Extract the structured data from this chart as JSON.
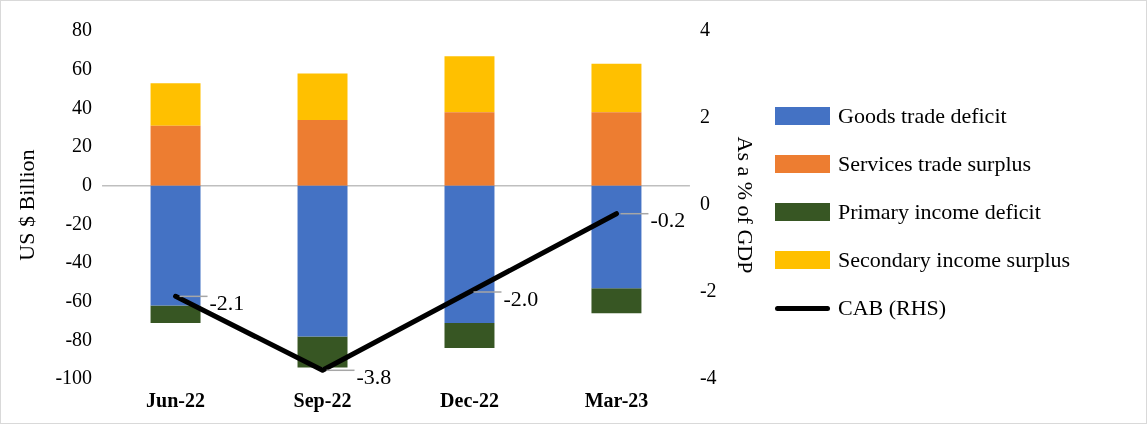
{
  "chart_data": {
    "type": "bar",
    "stacked": true,
    "categories": [
      "Jun-22",
      "Sep-22",
      "Dec-22",
      "Mar-23"
    ],
    "ylabel": "US $ Billion",
    "y2label": "As a % of GDP",
    "ylim": [
      -100,
      80
    ],
    "yticks": [
      -100,
      -80,
      -60,
      -40,
      -20,
      0,
      20,
      40,
      60,
      80
    ],
    "y2lim": [
      -4,
      4
    ],
    "y2ticks": [
      -4,
      -2,
      0,
      2,
      4
    ],
    "grid": false,
    "legend": "right",
    "ref_lines": [
      {
        "axis": "y",
        "value": 0,
        "color": "#bfbfbf"
      }
    ],
    "series": [
      {
        "name": "Goods trade deficit",
        "color": "#4472c4",
        "values": [
          -62,
          -78,
          -71,
          -53
        ]
      },
      {
        "name": "Services trade surplus",
        "color": "#ed7d31",
        "values": [
          31,
          34,
          38,
          38
        ]
      },
      {
        "name": "Primary income deficit",
        "color": "#375623",
        "values": [
          -9,
          -16,
          -13,
          -13
        ]
      },
      {
        "name": "Secondary income surplus",
        "color": "#ffc000",
        "values": [
          22,
          24,
          29,
          25
        ]
      },
      {
        "name": "CAB (RHS)",
        "type": "line",
        "axis": "y2",
        "color": "#000000",
        "values": [
          -2.1,
          -3.8,
          -2.0,
          -0.2
        ],
        "value_labels": [
          "-2.1",
          "-3.8",
          "-2.0",
          "-0.2"
        ],
        "marker": "none"
      }
    ]
  }
}
